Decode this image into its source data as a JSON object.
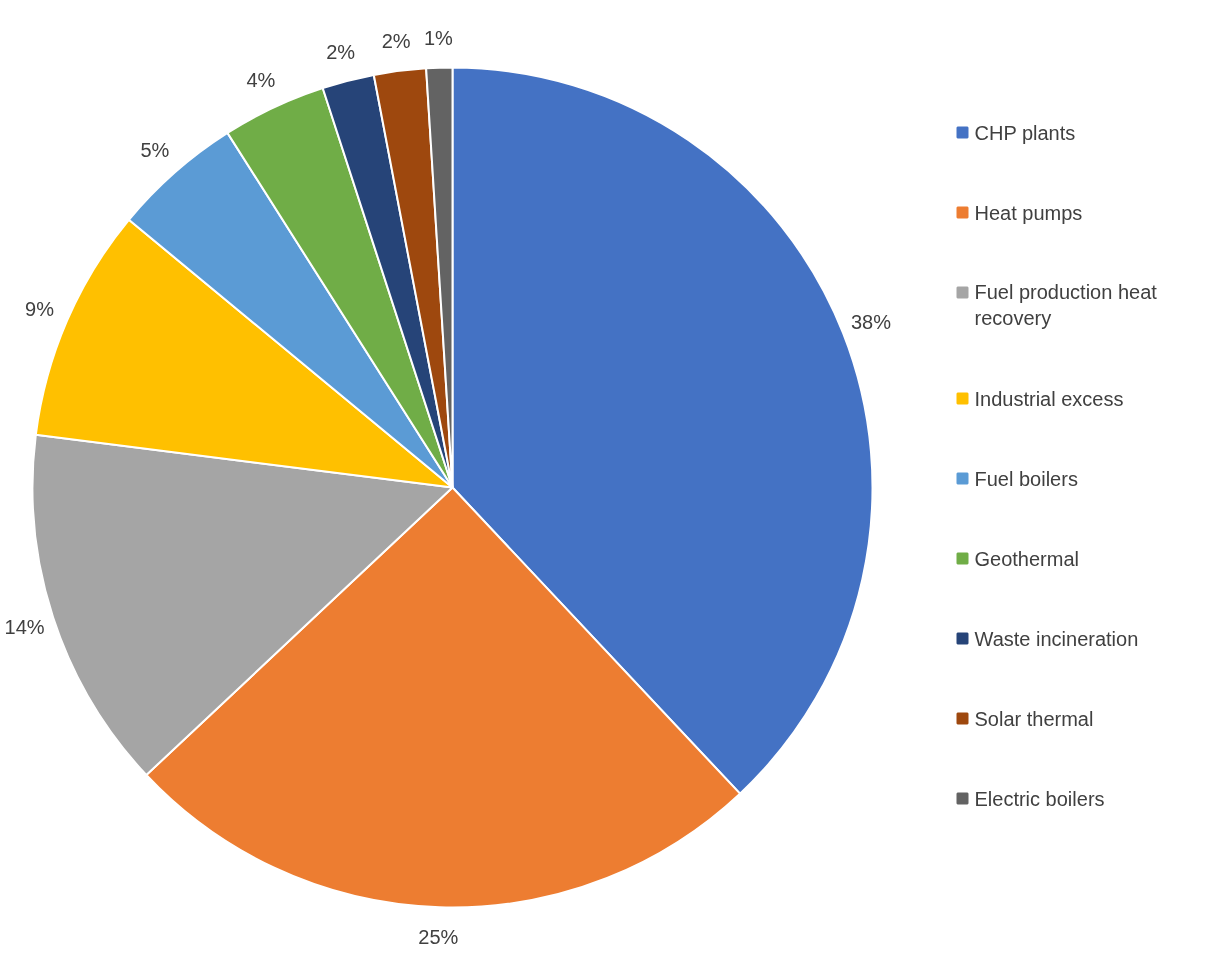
{
  "chart_data": {
    "type": "pie",
    "categories": [
      "CHP plants",
      "Heat pumps",
      "Fuel production heat recovery",
      "Industrial excess",
      "Fuel boilers",
      "Geothermal",
      "Waste incineration",
      "Solar thermal",
      "Electric boilers"
    ],
    "values": [
      38,
      25,
      14,
      9,
      5,
      4,
      2,
      2,
      1
    ],
    "colors": [
      "#4472c4",
      "#ed7d31",
      "#a5a5a5",
      "#ffc000",
      "#5b9bd5",
      "#70ad47",
      "#264478",
      "#9e480e",
      "#636363"
    ],
    "value_labels": [
      "38%",
      "25%",
      "14%",
      "9%",
      "5%",
      "4%",
      "2%",
      "2%",
      "1%"
    ],
    "legend": "right",
    "marker": "square"
  }
}
